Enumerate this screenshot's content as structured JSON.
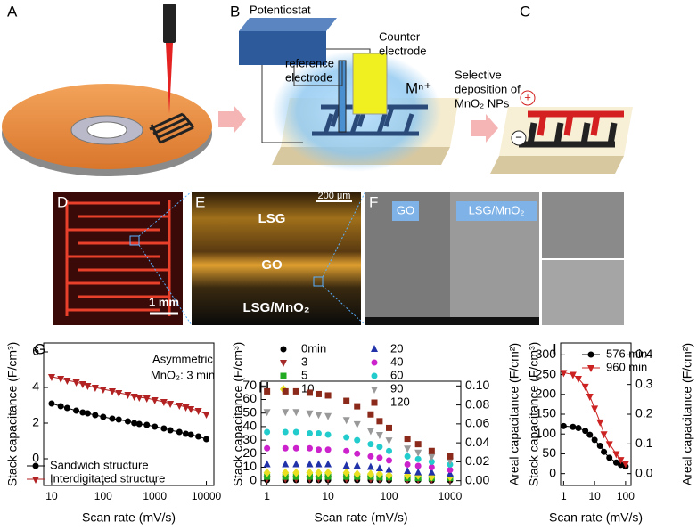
{
  "schematic": {
    "panel_a": "A",
    "panel_b": "B",
    "panel_c": "C",
    "potentiostat": "Potentiostat",
    "counter_electrode": [
      "Counter",
      "electrode"
    ],
    "reference_electrode": [
      "reference",
      "electrode"
    ],
    "ion": "Mⁿ⁺",
    "selective_deposition": [
      "Selective",
      "deposition of",
      "MnO₂ NPs"
    ],
    "plus": "+",
    "minus": "−"
  },
  "micrographs": {
    "panel_d": "D",
    "scale_d": "1 mm",
    "panel_e": "E",
    "scale_e": "200 μm",
    "lsg": "LSG",
    "go": "GO",
    "lsg_mno2": "LSG/MnO₂",
    "panel_f": "F",
    "f_go": "GO",
    "f_lsg_mno2": "LSG/MnO₂"
  },
  "chart_data": [
    {
      "type": "line",
      "panel": "G",
      "x_label": "Scan rate (mV/s)",
      "y_label": "Stack capacitance (F/cm³)",
      "annotation": [
        "Asymmetric",
        "MnO₂: 3 min"
      ],
      "xlog": true,
      "xlim": [
        7,
        14000
      ],
      "xticks": [
        10,
        100,
        1000,
        10000
      ],
      "ylim": [
        -1.5,
        6.5
      ],
      "yticks": [
        0,
        2,
        4,
        6
      ],
      "x": [
        10,
        15,
        20,
        30,
        40,
        50,
        70,
        100,
        150,
        200,
        300,
        400,
        500,
        700,
        1000,
        1500,
        2000,
        3000,
        4000,
        5000,
        7000,
        10000
      ],
      "series": [
        {
          "name": "Sandwich structure",
          "color": "#000000",
          "marker": "circle",
          "values": [
            3.1,
            2.95,
            2.85,
            2.7,
            2.6,
            2.55,
            2.45,
            2.35,
            2.25,
            2.2,
            2.1,
            2.0,
            1.95,
            1.9,
            1.8,
            1.7,
            1.6,
            1.5,
            1.4,
            1.35,
            1.25,
            1.1
          ]
        },
        {
          "name": "Interdigitated structure",
          "color": "#b22222",
          "marker": "triangle-down",
          "values": [
            4.6,
            4.5,
            4.4,
            4.3,
            4.2,
            4.1,
            4.0,
            3.9,
            3.8,
            3.7,
            3.6,
            3.5,
            3.45,
            3.4,
            3.3,
            3.2,
            3.1,
            3.0,
            2.9,
            2.8,
            2.7,
            2.5
          ]
        }
      ]
    },
    {
      "type": "scatter",
      "panel": "H",
      "x_label": "Scan rate (mV/s)",
      "y_label": "Stack capacitance (F/cm³)",
      "y2_label": "Areal capacitance (F/cm²)",
      "xlog": true,
      "xlim": [
        0.8,
        1500
      ],
      "xticks": [
        1,
        10,
        100,
        1000
      ],
      "ylim": [
        -3.5,
        73.5
      ],
      "yticks": [
        0,
        10,
        20,
        30,
        40,
        50,
        60,
        70
      ],
      "y2lim": [
        -0.005,
        0.105
      ],
      "y2ticks": [
        {
          "value": 0,
          "label": "0.00"
        },
        0.02,
        0.04,
        0.06,
        0.08,
        {
          "value": 0.1,
          "label": "0.10"
        }
      ],
      "x": [
        1,
        2,
        3,
        5,
        7,
        10,
        20,
        30,
        50,
        70,
        100,
        200,
        300,
        500,
        1000
      ],
      "series": [
        {
          "name": "0min",
          "color": "#000000",
          "marker": "circle",
          "values": [
            0.5,
            0.5,
            0.5,
            0.5,
            0.5,
            0.5,
            0.5,
            0.5,
            0.5,
            0.5,
            0.4,
            0.4,
            0.4,
            0.3,
            0.3
          ]
        },
        {
          "name": "3",
          "color": "#a52a2a",
          "marker": "triangle-down",
          "values": [
            1.5,
            1.5,
            1.5,
            1.5,
            1.5,
            1.5,
            1.5,
            1.5,
            1.4,
            1.4,
            1.3,
            1.2,
            1.1,
            1.1,
            1
          ]
        },
        {
          "name": "5",
          "color": "#22aa22",
          "marker": "square",
          "values": [
            3,
            3,
            3,
            3,
            3,
            3,
            3,
            3,
            3,
            2.5,
            2.5,
            2,
            2,
            2,
            2
          ]
        },
        {
          "name": "10",
          "color": "#e8e020",
          "marker": "diamond",
          "values": [
            6,
            6,
            6,
            6,
            6,
            6,
            6,
            5,
            5,
            5,
            4,
            4,
            4,
            3,
            3
          ]
        },
        {
          "name": "20",
          "color": "#2233aa",
          "marker": "triangle-up",
          "values": [
            12,
            12,
            12,
            12,
            12,
            12,
            11,
            11,
            10,
            9,
            8,
            7,
            6,
            6,
            5
          ]
        },
        {
          "name": "40",
          "color": "#cc22cc",
          "marker": "circle",
          "values": [
            24,
            24,
            24,
            24,
            23,
            23,
            22,
            20,
            18,
            17,
            15,
            12,
            11,
            10,
            8
          ]
        },
        {
          "name": "60",
          "color": "#22cccc",
          "marker": "circle",
          "values": [
            36,
            36,
            36,
            35,
            35,
            34,
            32,
            30,
            27,
            25,
            22,
            18,
            16,
            14,
            12
          ]
        },
        {
          "name": "90",
          "color": "#999999",
          "marker": "triangle-down",
          "values": [
            51,
            51,
            51,
            50,
            49,
            48,
            45,
            42,
            37,
            34,
            30,
            24,
            21,
            18,
            15
          ]
        },
        {
          "name": "120",
          "color": "#8b2a1a",
          "marker": "square",
          "values": [
            66,
            66,
            66,
            65,
            64,
            63,
            59,
            55,
            49,
            44,
            39,
            31,
            27,
            22,
            18
          ]
        }
      ]
    },
    {
      "type": "line",
      "panel": "I",
      "x_label": "Scan rate (mV/s)",
      "y_label": "Stack capacitance (F/cm³)",
      "y2_label": "Areal capacitance (F/cm²)",
      "xlog": true,
      "xlim": [
        0.8,
        150
      ],
      "xticks": [
        1,
        10,
        100
      ],
      "ylim": [
        -30,
        330
      ],
      "yticks": [
        0,
        50,
        100,
        150,
        200,
        250,
        300
      ],
      "y2lim": [
        -0.04,
        0.44
      ],
      "y2ticks": [
        {
          "value": 0,
          "label": "0.0"
        },
        0.1,
        0.2,
        0.3,
        0.4
      ],
      "x": [
        1,
        2,
        3,
        5,
        7,
        10,
        15,
        20,
        30,
        50,
        70,
        100
      ],
      "series": [
        {
          "name": "576 min",
          "color": "#000000",
          "marker": "circle",
          "values": [
            120,
            118,
            115,
            108,
            98,
            85,
            70,
            55,
            40,
            28,
            22,
            18
          ]
        },
        {
          "name": "960 min",
          "color": "#cc2222",
          "marker": "triangle-down",
          "values": [
            255,
            250,
            240,
            220,
            195,
            165,
            130,
            100,
            75,
            50,
            35,
            25
          ]
        }
      ]
    }
  ]
}
